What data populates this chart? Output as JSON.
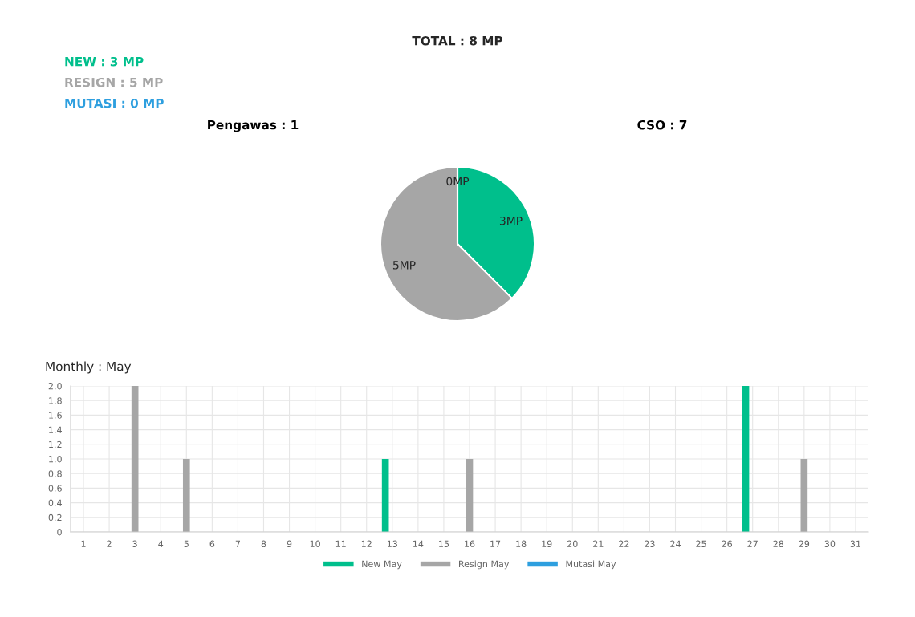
{
  "chart_data": [
    {
      "type": "pie",
      "title": "TOTAL : 8 MP",
      "categories": [
        null,
        null,
        null
      ],
      "values": [
        3,
        5,
        0
      ],
      "colors": [
        "#00bf8c",
        "#a6a6a6",
        "#2e9fdf"
      ],
      "value_labels": [
        "3MP",
        "5MP",
        "0MP"
      ],
      "annotations": [
        "NEW : 3 MP",
        "RESIGN : 5 MP",
        "MUTASI : 0 MP",
        "Pengawas : 1",
        "CSO : 7"
      ]
    },
    {
      "type": "bar",
      "title": "Monthly : May",
      "categories": [
        "1",
        "2",
        "3",
        "4",
        "5",
        "6",
        "7",
        "8",
        "9",
        "10",
        "11",
        "12",
        "13",
        "14",
        "15",
        "16",
        "17",
        "18",
        "19",
        "20",
        "21",
        "22",
        "23",
        "24",
        "25",
        "26",
        "27",
        "28",
        "29",
        "30",
        "31"
      ],
      "series": [
        {
          "name": "New May",
          "color": "#00bf8c",
          "values": [
            0,
            0,
            0,
            0,
            0,
            0,
            0,
            0,
            0,
            0,
            0,
            0,
            1,
            0,
            0,
            0,
            0,
            0,
            0,
            0,
            0,
            0,
            0,
            0,
            0,
            0,
            2,
            0,
            0,
            0,
            0
          ]
        },
        {
          "name": "Resign May",
          "color": "#a6a6a6",
          "values": [
            0,
            0,
            2,
            0,
            1,
            0,
            0,
            0,
            0,
            0,
            0,
            0,
            0,
            0,
            0,
            1,
            0,
            0,
            0,
            0,
            0,
            0,
            0,
            0,
            0,
            0,
            0,
            0,
            1,
            0,
            0
          ]
        },
        {
          "name": "Mutasi May",
          "color": "#2e9fdf",
          "values": [
            0,
            0,
            0,
            0,
            0,
            0,
            0,
            0,
            0,
            0,
            0,
            0,
            0,
            0,
            0,
            0,
            0,
            0,
            0,
            0,
            0,
            0,
            0,
            0,
            0,
            0,
            0,
            0,
            0,
            0,
            0
          ]
        }
      ],
      "ylim": [
        0,
        2
      ],
      "yticks": [
        0,
        {
          "value": 0.2,
          "label": "0.2"
        },
        {
          "value": 0.4,
          "label": "0.4"
        },
        {
          "value": 0.6,
          "label": "0.6"
        },
        {
          "value": 0.8,
          "label": "0.8"
        },
        {
          "value": 1.0,
          "label": "1.0"
        },
        {
          "value": 1.2,
          "label": "1.2"
        },
        {
          "value": 1.4,
          "label": "1.4"
        },
        {
          "value": 1.6,
          "label": "1.6"
        },
        {
          "value": 1.8,
          "label": "1.8"
        },
        {
          "value": 2.0,
          "label": "2.0"
        }
      ],
      "grid": true,
      "legend": "bottom"
    }
  ]
}
